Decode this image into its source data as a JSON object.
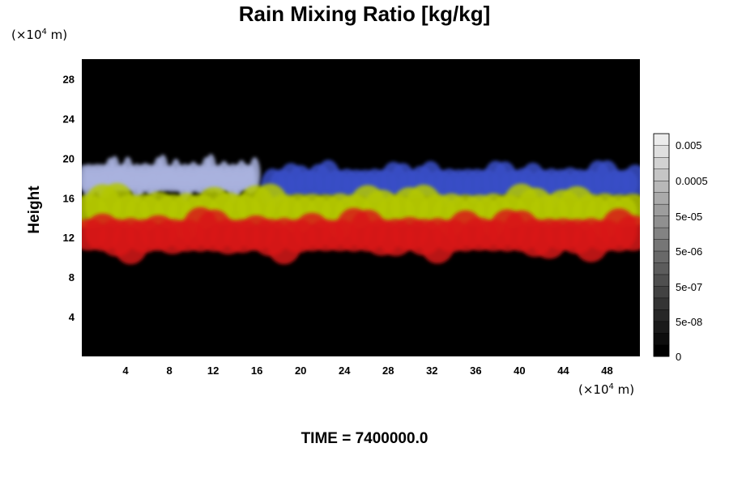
{
  "chart_data": {
    "type": "heatmap",
    "title": "Rain Mixing Ratio [kg/kg]",
    "ylabel": "Height",
    "xlabel": "",
    "x_unit": "(×10",
    "x_unit_exp": "4",
    "x_unit_suffix": " m)",
    "y_unit": "(×10",
    "y_unit_exp": "4",
    "y_unit_suffix": " m)",
    "xlim": [
      0,
      51
    ],
    "ylim": [
      0,
      30
    ],
    "x_ticks": [
      "4",
      "8",
      "12",
      "16",
      "20",
      "24",
      "28",
      "32",
      "36",
      "40",
      "44",
      "48"
    ],
    "y_ticks": [
      "4",
      "8",
      "12",
      "16",
      "20",
      "24",
      "28"
    ],
    "background": "#000000",
    "grid": false,
    "colorbar": {
      "position": "right",
      "scale": "log",
      "labels": [
        "0.005",
        "0.0005",
        "5e-05",
        "5e-06",
        "5e-07",
        "5e-08",
        "0"
      ],
      "levels": 19,
      "color_low": "#000000",
      "color_high": "#ececec"
    },
    "layers": [
      {
        "name": "",
        "color": "#aab4e0",
        "x_range": [
          0,
          16
        ],
        "y_range": [
          16.5,
          19.5
        ]
      },
      {
        "name": "",
        "color": "#3a4fc8",
        "x_range": [
          17,
          51
        ],
        "y_range": [
          16,
          19
        ]
      },
      {
        "name": "",
        "color": "#b4c800",
        "x_range": [
          0,
          51
        ],
        "y_range": [
          13,
          16.5
        ]
      },
      {
        "name": "",
        "color": "#d81818",
        "x_range": [
          0,
          51
        ],
        "y_range": [
          10.5,
          14
        ]
      }
    ]
  },
  "footer": {
    "time_label": "TIME = 7400000.0"
  }
}
